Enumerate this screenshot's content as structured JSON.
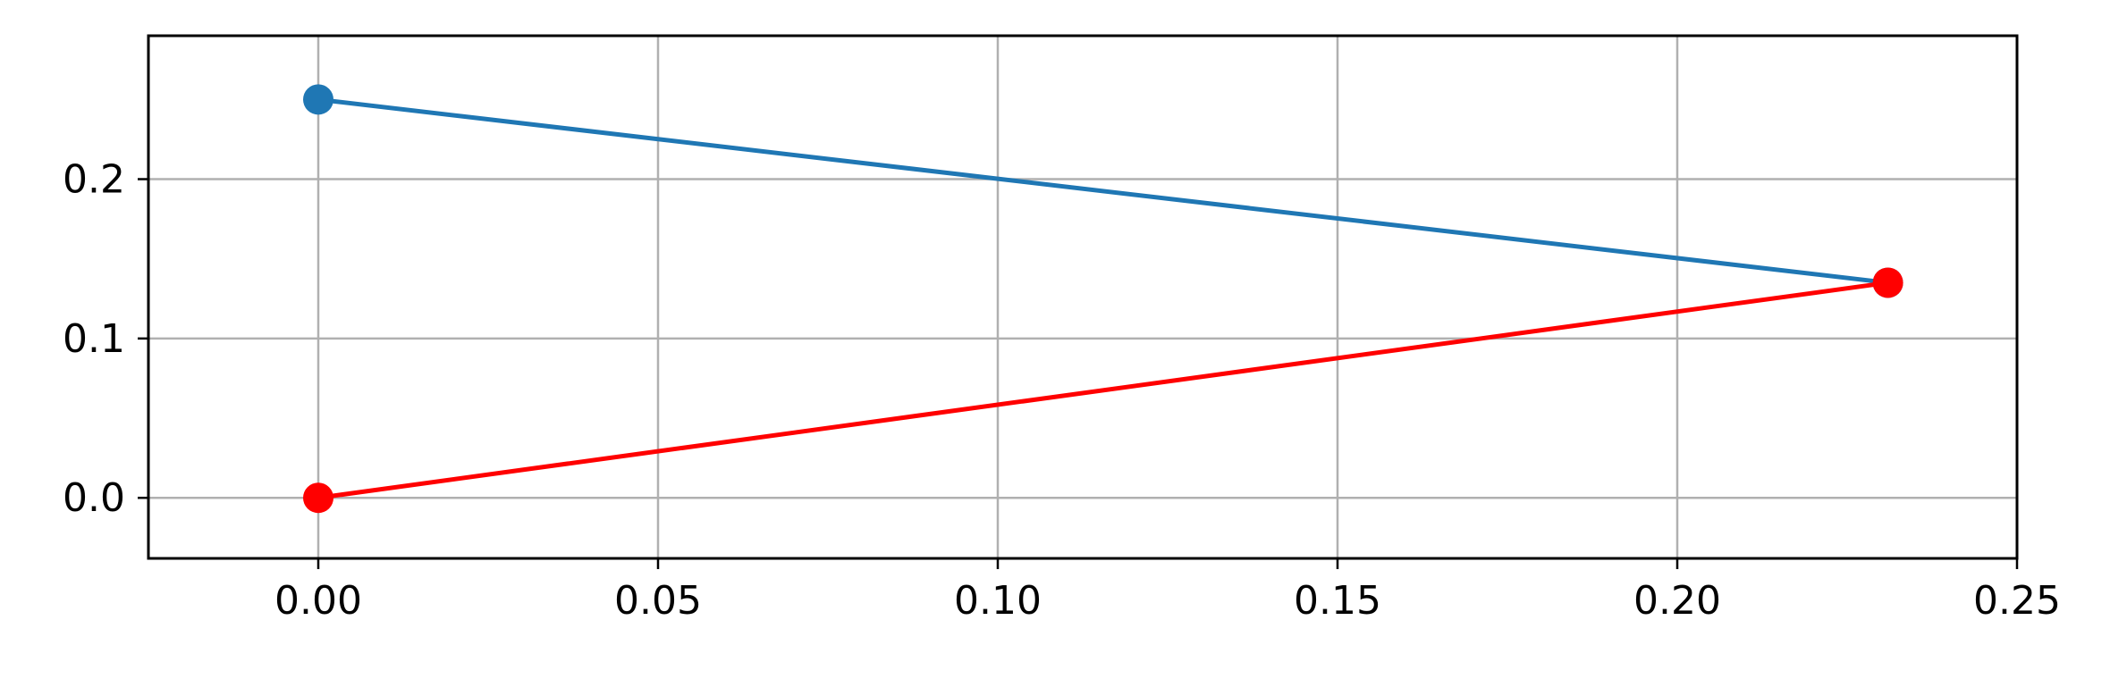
{
  "chart_data": {
    "type": "line",
    "title": "",
    "xlabel": "",
    "ylabel": "",
    "xlim": [
      -0.025,
      0.25
    ],
    "ylim": [
      -0.038,
      0.29
    ],
    "grid": true,
    "legend": "none",
    "x_ticks": [
      {
        "value": 0.0,
        "label": "0.00"
      },
      {
        "value": 0.05,
        "label": "0.05"
      },
      {
        "value": 0.1,
        "label": "0.10"
      },
      {
        "value": 0.15,
        "label": "0.15"
      },
      {
        "value": 0.2,
        "label": "0.20"
      },
      {
        "value": 0.25,
        "label": "0.25"
      }
    ],
    "y_ticks": [
      {
        "value": 0.0,
        "label": "0.0"
      },
      {
        "value": 0.1,
        "label": "0.1"
      },
      {
        "value": 0.2,
        "label": "0.2"
      }
    ],
    "series": [
      {
        "color": "#1f77b4",
        "points": [
          {
            "x": 0.0,
            "y": 0.25
          },
          {
            "x": 0.231,
            "y": 0.135
          }
        ]
      },
      {
        "color": "#ff0000",
        "points": [
          {
            "x": 0.0,
            "y": 0.0
          },
          {
            "x": 0.231,
            "y": 0.135
          }
        ]
      }
    ]
  }
}
